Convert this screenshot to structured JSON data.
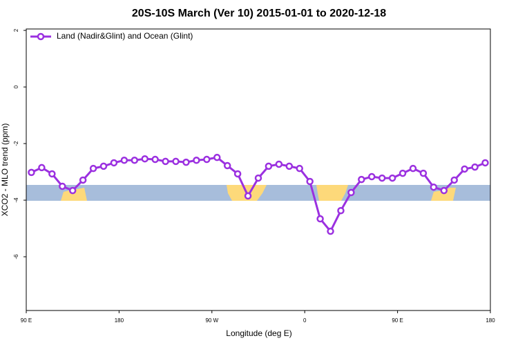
{
  "chart_data": {
    "type": "line",
    "title": "20S-10S March (Ver 10)   2015-01-01 to 2020-12-18",
    "x_label": "Longitude (deg E)",
    "y_label": "XCO2 - MLO trend (ppm)",
    "xlim": [
      90,
      540
    ],
    "xticks": [
      {
        "value": 90,
        "label": "90 E"
      },
      {
        "value": 180,
        "label": "180"
      },
      {
        "value": 270,
        "label": "90 W"
      },
      {
        "value": 360,
        "label": "0"
      },
      {
        "value": 450,
        "label": "90 E"
      },
      {
        "value": 540,
        "label": "180"
      }
    ],
    "ylim": [
      -7.9,
      2.05
    ],
    "yticks": [
      2,
      0,
      -2,
      -4,
      -6
    ],
    "legend": "top-left",
    "x": [
      95,
      105,
      115,
      125,
      135,
      145,
      155,
      165,
      175,
      185,
      195,
      205,
      215,
      225,
      235,
      245,
      255,
      265,
      275,
      285,
      295,
      305,
      315,
      325,
      335,
      345,
      355,
      365,
      375,
      385,
      395,
      405,
      415,
      425,
      435,
      445,
      455,
      465,
      475,
      485,
      495,
      505,
      515,
      525,
      535
    ],
    "series": [
      {
        "name": "Land (Nadir&Glint) and Ocean (Glint)",
        "color": "#9b30e0",
        "values": [
          -3.02,
          -2.85,
          -3.07,
          -3.51,
          -3.66,
          -3.29,
          -2.88,
          -2.8,
          -2.68,
          -2.59,
          -2.59,
          -2.54,
          -2.56,
          -2.63,
          -2.63,
          -2.66,
          -2.59,
          -2.56,
          -2.49,
          -2.78,
          -3.07,
          -3.85,
          -3.22,
          -2.8,
          -2.73,
          -2.8,
          -2.88,
          -3.34,
          -4.66,
          -5.1,
          -4.37,
          -3.73,
          -3.27,
          -3.17,
          -3.22,
          -3.22,
          -3.05,
          -2.88,
          -3.05,
          -3.54,
          -3.66,
          -3.29,
          -2.9,
          -2.83,
          -2.68
        ]
      }
    ]
  }
}
